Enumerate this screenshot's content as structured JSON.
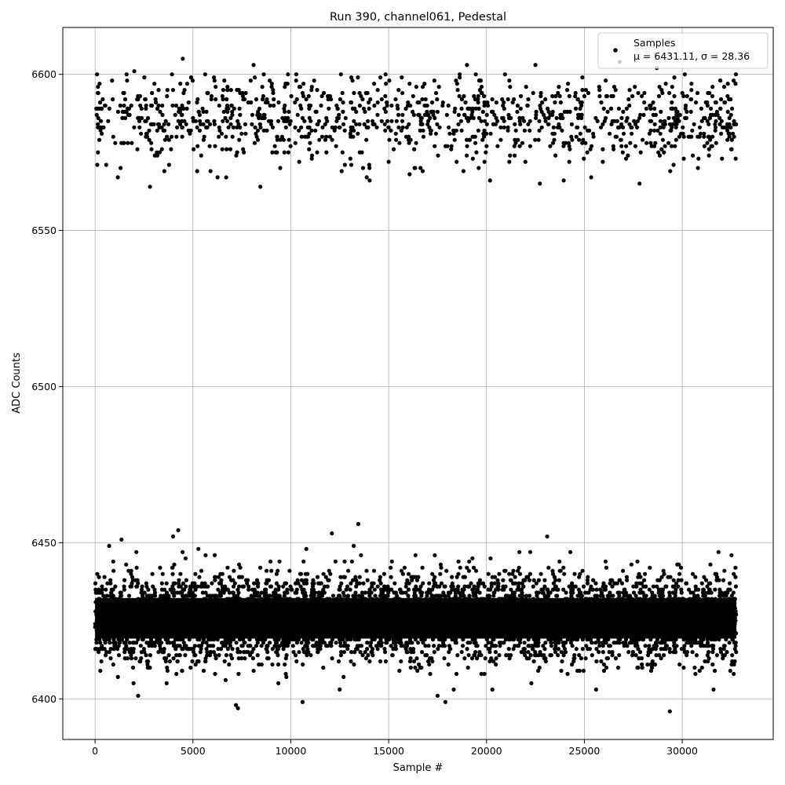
{
  "chart_data": {
    "type": "scatter",
    "title": "Run 390, channel061, Pedestal",
    "xlabel": "Sample #",
    "ylabel": "ADC Counts",
    "xlim": [
      -1650,
      34650
    ],
    "ylim": [
      6387,
      6615
    ],
    "x_ticks": [
      0,
      5000,
      10000,
      15000,
      20000,
      25000,
      30000
    ],
    "y_ticks": [
      6400,
      6450,
      6500,
      6550,
      6600
    ],
    "grid": true,
    "legend_position": "top-right",
    "legend_title": "Samples",
    "legend_label": "μ = 6431.11, σ = 28.36",
    "marker_color": "#000000",
    "series": [
      {
        "name": "Samples",
        "n_samples": 32768,
        "band_low_center": 6425.8,
        "band_low_sigma": 7.0,
        "band_high_center": 6585.6,
        "band_high_sigma": 7.0,
        "x_range": [
          0,
          32768
        ],
        "outliers": [
          {
            "x": 4480,
            "y": 6605
          },
          {
            "x": 8100,
            "y": 6603
          },
          {
            "x": 2000,
            "y": 6601
          },
          {
            "x": 19000,
            "y": 6603
          },
          {
            "x": 22500,
            "y": 6603
          },
          {
            "x": 6700,
            "y": 6567
          },
          {
            "x": 12600,
            "y": 6569
          },
          {
            "x": 19600,
            "y": 6570
          },
          {
            "x": 5900,
            "y": 6569
          },
          {
            "x": 4250,
            "y": 6454
          },
          {
            "x": 13450,
            "y": 6456
          },
          {
            "x": 23100,
            "y": 6452
          },
          {
            "x": 1350,
            "y": 6451
          },
          {
            "x": 12100,
            "y": 6453
          },
          {
            "x": 2200,
            "y": 6401
          },
          {
            "x": 7200,
            "y": 6398
          },
          {
            "x": 7300,
            "y": 6397
          },
          {
            "x": 10600,
            "y": 6399
          },
          {
            "x": 17500,
            "y": 6401
          },
          {
            "x": 17900,
            "y": 6399
          },
          {
            "x": 20300,
            "y": 6403
          },
          {
            "x": 31600,
            "y": 6403
          },
          {
            "x": 26800,
            "y": 6604
          },
          {
            "x": 28700,
            "y": 6602
          }
        ]
      }
    ]
  }
}
